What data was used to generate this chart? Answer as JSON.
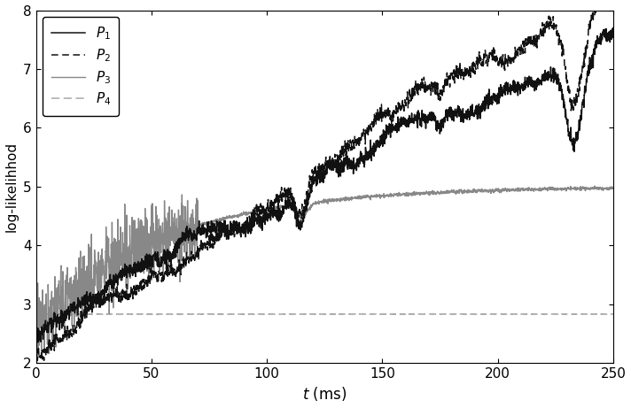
{
  "title": "",
  "xlabel_text": "t",
  "xlabel_unit": " (ms)",
  "ylabel": "log-likelihhod",
  "xlim": [
    0,
    250
  ],
  "ylim": [
    2,
    8
  ],
  "xticks": [
    0,
    50,
    100,
    150,
    200,
    250
  ],
  "yticks": [
    2,
    3,
    4,
    5,
    6,
    7,
    8
  ],
  "legend_labels": [
    "$P_1$",
    "$P_2$",
    "$P_3$",
    "$P_4$"
  ],
  "p1_color": "#111111",
  "p2_color": "#111111",
  "p3_color": "#888888",
  "p4_color": "#aaaaaa",
  "background_color": "#ffffff",
  "seed": 10,
  "n_points": 2500
}
